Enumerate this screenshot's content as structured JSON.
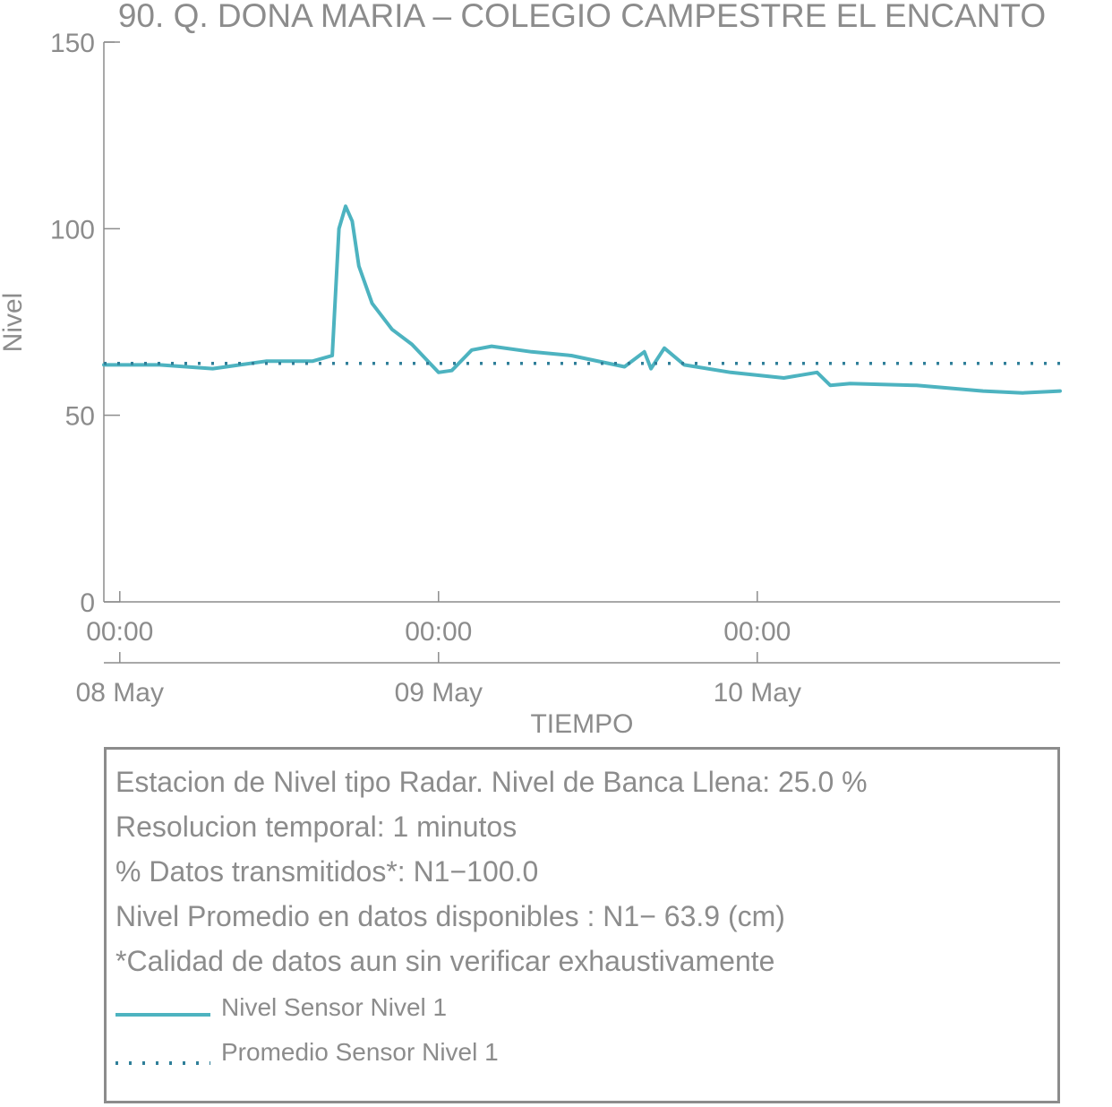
{
  "chart_data": {
    "type": "line",
    "title": "90. Q. DONA MARIA – COLEGIO CAMPESTRE EL ENCANTO",
    "xlabel": "TIEMPO",
    "ylabel": "Nivel",
    "ylim": [
      0,
      150
    ],
    "yticks": [
      0,
      50,
      100,
      150
    ],
    "xlim": [
      "2024-05-07T22:48",
      "2024-05-10T22:48"
    ],
    "x_time_ticks": [
      "00:00",
      "00:00",
      "00:00"
    ],
    "x_date_ticks": [
      "08 May",
      "09 May",
      "10 May"
    ],
    "x_tick_positions": [
      "2024-05-08T00:00",
      "2024-05-09T00:00",
      "2024-05-10T00:00"
    ],
    "grid": false,
    "series": [
      {
        "name": "Nivel Sensor Nivel 1",
        "color": "#4db3c0",
        "style": "solid",
        "x": [
          "2024-05-07T22:48",
          "2024-05-08T03:00",
          "2024-05-08T07:00",
          "2024-05-08T11:00",
          "2024-05-08T14:30",
          "2024-05-08T16:00",
          "2024-05-08T16:30",
          "2024-05-08T17:00",
          "2024-05-08T17:30",
          "2024-05-08T18:00",
          "2024-05-08T19:00",
          "2024-05-08T20:30",
          "2024-05-08T22:00",
          "2024-05-09T00:00",
          "2024-05-09T01:00",
          "2024-05-09T02:30",
          "2024-05-09T04:00",
          "2024-05-09T07:00",
          "2024-05-09T10:00",
          "2024-05-09T14:00",
          "2024-05-09T15:30",
          "2024-05-09T16:00",
          "2024-05-09T17:00",
          "2024-05-09T18:30",
          "2024-05-09T22:00",
          "2024-05-10T02:00",
          "2024-05-10T04:30",
          "2024-05-10T05:30",
          "2024-05-10T07:00",
          "2024-05-10T12:00",
          "2024-05-10T17:00",
          "2024-05-10T20:00",
          "2024-05-10T22:48"
        ],
        "y": [
          63.5,
          63.5,
          62.5,
          64.5,
          64.5,
          66.0,
          100.0,
          106.0,
          102.0,
          90.0,
          80.0,
          73.0,
          69.0,
          61.5,
          62.0,
          67.5,
          68.5,
          67.0,
          66.0,
          63.0,
          67.0,
          62.5,
          68.0,
          63.5,
          61.5,
          60.0,
          61.5,
          58.0,
          58.5,
          58.0,
          56.5,
          56.0,
          56.5
        ]
      },
      {
        "name": "Promedio Sensor Nivel 1",
        "color": "#2f7f99",
        "style": "dotted",
        "x": [
          "2024-05-07T22:48",
          "2024-05-10T22:48"
        ],
        "y": [
          63.9,
          63.9
        ]
      }
    ]
  },
  "info": {
    "line1": "Estacion de Nivel tipo Radar. Nivel de Banca Llena: 25.0 %",
    "line2": "Resolucion temporal: 1 minutos",
    "line3": "% Datos transmitidos*: N1−100.0",
    "line4": "Nivel Promedio en datos disponibles : N1− 63.9 (cm)",
    "line5": "*Calidad de datos aun sin verificar exhaustivamente"
  }
}
